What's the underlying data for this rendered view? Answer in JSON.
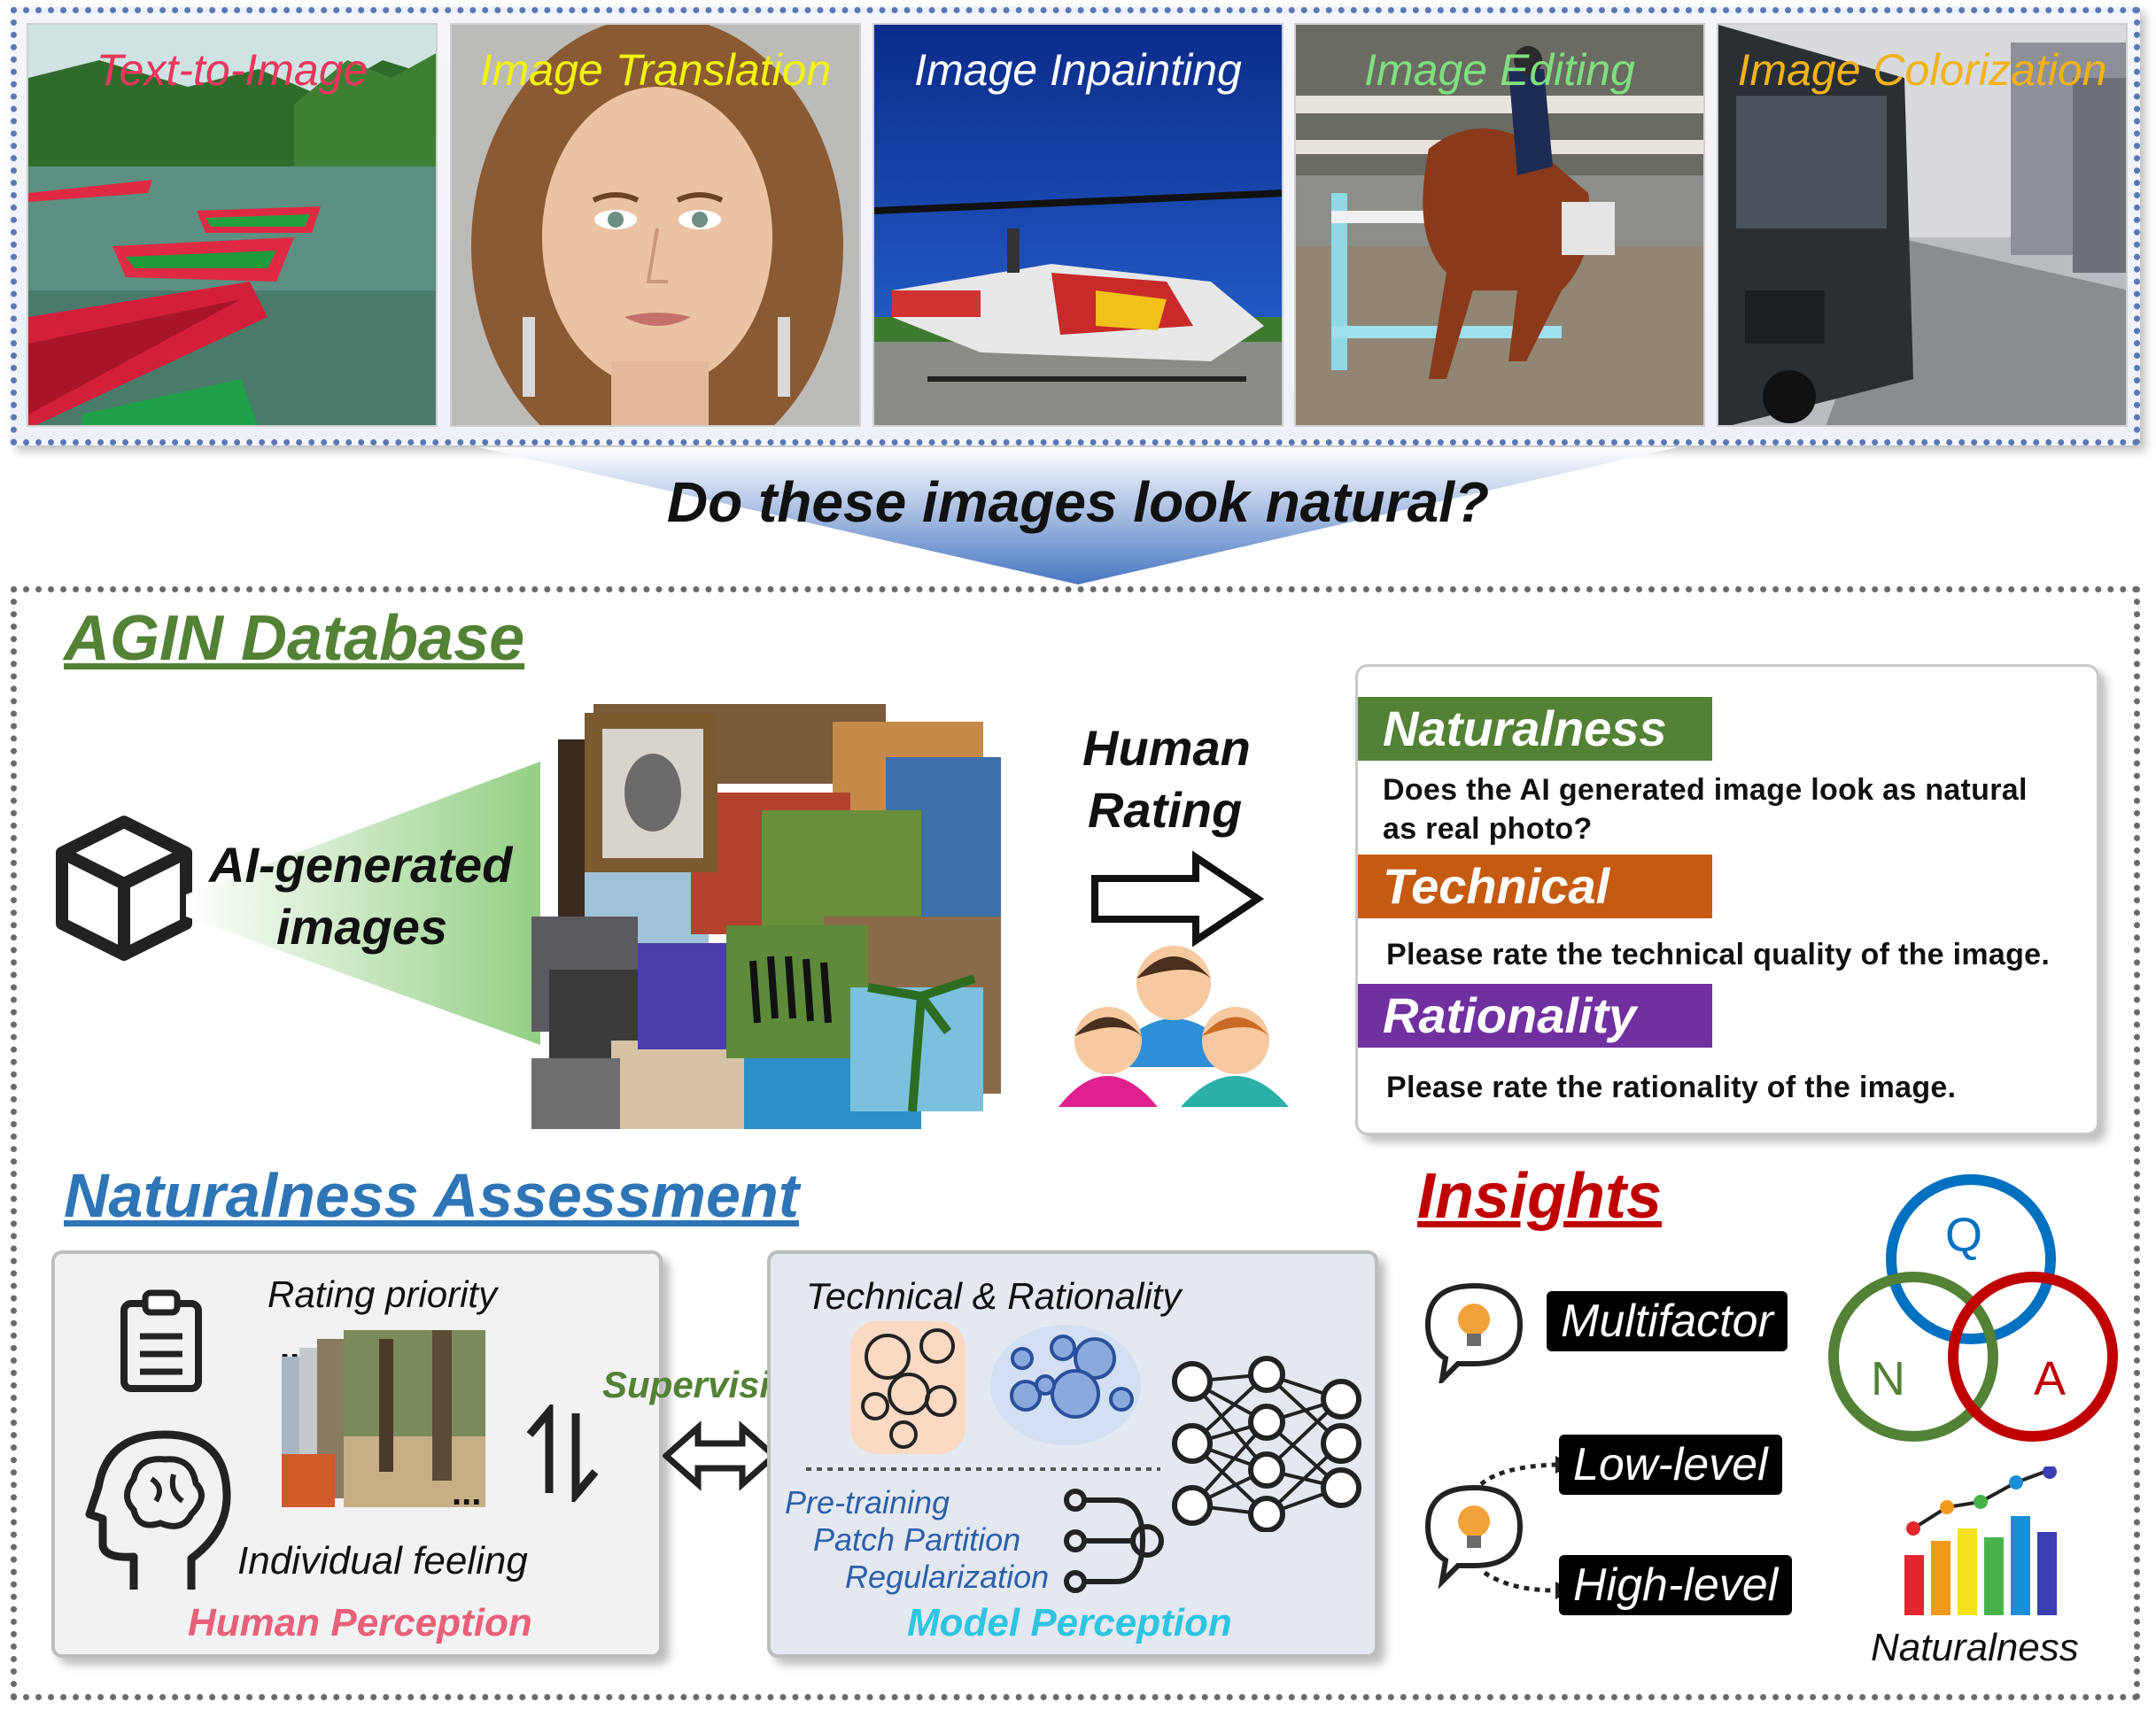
{
  "top_strip": {
    "tasks": [
      {
        "label": "Text-to-Image",
        "color": "#e8365d"
      },
      {
        "label": "Image Translation",
        "color": "#f2f20e"
      },
      {
        "label": "Image Inpainting",
        "color": "#ffffff"
      },
      {
        "label": "Image Editing",
        "color": "#7fe07f"
      },
      {
        "label": "Image Colorization",
        "color": "#f2b21a"
      }
    ],
    "question": "Do these images look natural?"
  },
  "agin": {
    "title": "AGIN Database",
    "ai_label_line1": "AI-generated",
    "ai_label_line2": "images",
    "rating_line1": "Human",
    "rating_line2": "Rating",
    "criteria": [
      {
        "name": "Naturalness",
        "color": "#538135",
        "q1": "Does the AI generated image look as natural",
        "q2": "as real photo?"
      },
      {
        "name": "Technical",
        "color": "#c55a11",
        "q1": "Please rate the technical quality of the image.",
        "q2": ""
      },
      {
        "name": "Rationality",
        "color": "#7030a0",
        "q1": "Please rate the rationality of the image.",
        "q2": ""
      }
    ]
  },
  "assessment": {
    "title": "Naturalness Assessment",
    "rating_priority": "Rating priority",
    "dots_top": "...",
    "dots_bottom": "...",
    "individual_feeling": "Individual feeling",
    "human_perception": "Human Perception",
    "supervision": "Supervision",
    "tech_rationality": "Technical & Rationality",
    "pretraining": "Pre-training",
    "patch_partition": "Patch Partition",
    "regularization": "Regularization",
    "model_perception": "Model Perception"
  },
  "insights": {
    "title": "Insights",
    "multifactor": "Multifactor",
    "low_level": "Low-level",
    "high_level": "High-level",
    "venn": {
      "q": "Q",
      "n": "N",
      "a": "A"
    },
    "naturalness": "Naturalness"
  },
  "colors": {
    "agin_title": "#538135",
    "assessment_title": "#2e75b6",
    "insights_title": "#c00000",
    "human_perception": "#e8607a",
    "model_perception": "#2ec4e0",
    "supervision": "#538135",
    "model_text": "#2e5fa8"
  }
}
